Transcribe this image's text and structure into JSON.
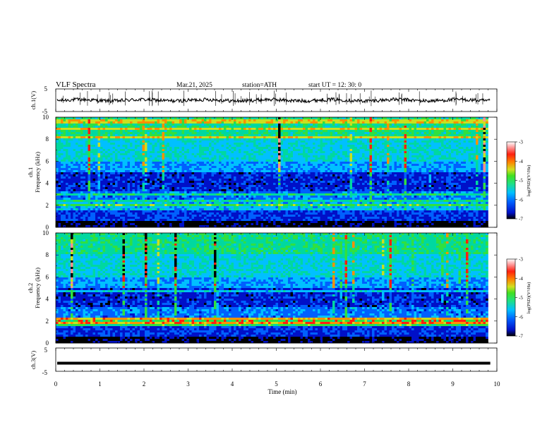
{
  "header": {
    "title": "VLF  Spectra",
    "date": "Mar.21, 2025",
    "station": "station=ATH",
    "start": "start  UT  =    12: 30: 0"
  },
  "chart_data": [
    {
      "id": "ch1-waveform",
      "type": "line",
      "ylabel": "ch.1(V)",
      "ylim": [
        -5,
        5
      ],
      "yticks": [
        "5",
        "-5"
      ],
      "x_range": [
        0,
        10
      ],
      "description_level": 0,
      "color": "#000000"
    },
    {
      "id": "ch1-spectrogram",
      "type": "heatmap",
      "ylabel": "ch.1\nFrequency  (kHz)",
      "ylim": [
        0,
        10
      ],
      "yticks": [
        "0",
        "2",
        "4",
        "6",
        "8",
        "10"
      ],
      "x_range": [
        0,
        10
      ],
      "data_end_min": 9.8,
      "colorbar": {
        "label": "log(PSD)(V²/Hz)",
        "range": [
          -7,
          -3
        ],
        "ticks": [
          "-3",
          "-4",
          "-5",
          "-6",
          "-7"
        ]
      }
    },
    {
      "id": "ch2-spectrogram",
      "type": "heatmap",
      "ylabel": "ch.2\nFrequency  (kHz)",
      "ylim": [
        0,
        10
      ],
      "yticks": [
        "0",
        "2",
        "4",
        "6",
        "8",
        "10"
      ],
      "x_range": [
        0,
        10
      ],
      "data_end_min": 9.8,
      "colorbar": {
        "label": "log(PSD)(V²/Hz)",
        "range": [
          -7,
          -3
        ],
        "ticks": [
          "-3",
          "-4",
          "-5",
          "-6",
          "-7"
        ]
      }
    },
    {
      "id": "ch3-waveform",
      "type": "line",
      "ylabel": "ch.3(V)",
      "ylim": [
        -5,
        5
      ],
      "yticks": [
        "5",
        "-5"
      ],
      "x_range": [
        0,
        10
      ],
      "level": -1.5,
      "color": "#000000"
    }
  ],
  "xaxis": {
    "label": "Time  (min)",
    "ticks": [
      "0",
      "1",
      "2",
      "3",
      "4",
      "5",
      "6",
      "7",
      "8",
      "9",
      "10"
    ],
    "range": [
      0,
      10
    ]
  },
  "colormap": [
    "#000000",
    "#0010c8",
    "#0060ff",
    "#00c0ff",
    "#00d8a0",
    "#30e040",
    "#c8e020",
    "#ff9000",
    "#ff2010",
    "#ff9090",
    "#ffffff"
  ]
}
